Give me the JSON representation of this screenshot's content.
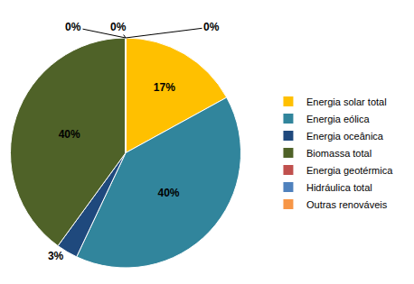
{
  "chart_data": {
    "type": "pie",
    "categories": [
      "Energia solar total",
      "Energia eólica",
      "Energia oceânica",
      "Biomassa total",
      "Energia geotérmica",
      "Hidráulica total",
      "Outras renováveis"
    ],
    "values": [
      17,
      40,
      3,
      40,
      0,
      0,
      0
    ],
    "value_labels": [
      "17%",
      "40%",
      "3%",
      "40%",
      "0%",
      "0%",
      "0%"
    ],
    "colors": [
      "#FFC000",
      "#31859C",
      "#1F497D",
      "#4F6228",
      "#C0504D",
      "#4F81BD",
      "#F79646"
    ],
    "data_labels": true,
    "legend": "right"
  }
}
